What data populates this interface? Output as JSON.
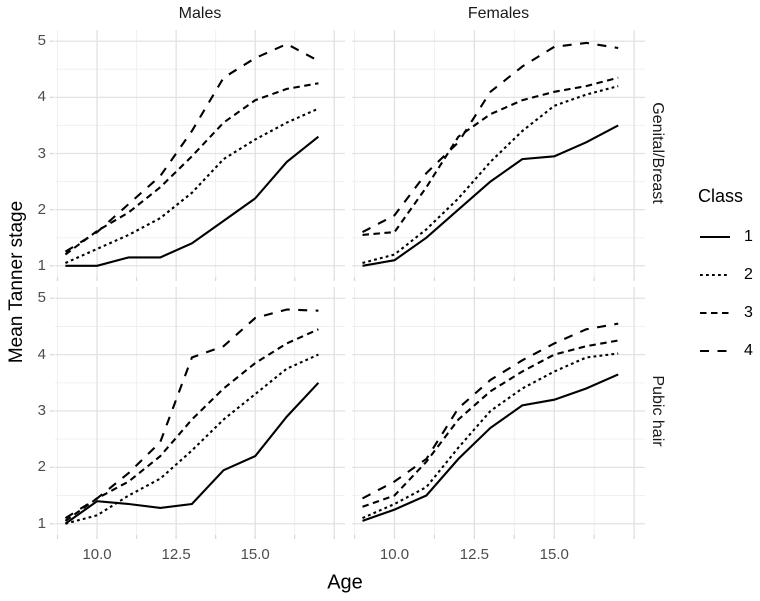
{
  "figure": {
    "y_axis_title": "Mean Tanner stage",
    "x_axis_title": "Age",
    "col_facets": [
      "Males",
      "Females"
    ],
    "row_facets": [
      "Genital/Breast",
      "Pubic hair"
    ],
    "x_tick_labels": [
      "10.0",
      "12.5",
      "15.0"
    ],
    "y_tick_labels": [
      "1",
      "2",
      "3",
      "4",
      "5"
    ],
    "colors": {
      "line": "#000000",
      "grid_major": "#e2e2e2",
      "grid_minor": "#f0f0f0",
      "tick_mark": "#d9d9d9",
      "tick_label": "#4d4d4d",
      "strip_text": "#1a1a1a",
      "background": "#ffffff"
    }
  },
  "legend": {
    "title": "Class",
    "items": [
      {
        "label": "1",
        "dash": "none"
      },
      {
        "label": "2",
        "dash": "2.8 3.2"
      },
      {
        "label": "3",
        "dash": "6.5 4.5"
      },
      {
        "label": "4",
        "dash": "9 8.5"
      }
    ]
  },
  "chart_data": {
    "type": "line",
    "title": "",
    "xlabel": "Age",
    "ylabel": "Mean Tanner stage",
    "legend_title": "Class",
    "legend_position": "right",
    "grid": true,
    "x": [
      9,
      10,
      11,
      12,
      13,
      14,
      15,
      16,
      17
    ],
    "x_tick_values": [
      10,
      12.5,
      15
    ],
    "y_tick_values": [
      1,
      2,
      3,
      4,
      5
    ],
    "x_minor_gridlines": [
      8.75,
      11.25,
      13.75,
      16.25
    ],
    "x_major_gridlines": [
      10,
      12.5,
      15,
      17.5
    ],
    "y_minor_gridlines": [
      1.5,
      2.5,
      3.5,
      4.5
    ],
    "y_major_gridlines": [
      1,
      2,
      3,
      4,
      5
    ],
    "xlim": [
      8.67,
      17.84
    ],
    "ylim": [
      0.8,
      5.2
    ],
    "panels": [
      {
        "col": "Males",
        "row": "Genital/Breast",
        "series": [
          {
            "name": "1",
            "values": [
              1.0,
              1.0,
              1.15,
              1.15,
              1.4,
              1.8,
              2.2,
              2.85,
              3.3
            ]
          },
          {
            "name": "2",
            "values": [
              1.05,
              1.3,
              1.55,
              1.85,
              2.3,
              2.9,
              3.25,
              3.55,
              3.8
            ]
          },
          {
            "name": "3",
            "values": [
              1.2,
              1.62,
              1.95,
              2.4,
              2.95,
              3.55,
              3.95,
              4.15,
              4.25
            ]
          },
          {
            "name": "4",
            "values": [
              1.25,
              1.6,
              2.1,
              2.6,
              3.4,
              4.35,
              4.7,
              4.95,
              4.65
            ]
          }
        ]
      },
      {
        "col": "Females",
        "row": "Genital/Breast",
        "series": [
          {
            "name": "1",
            "values": [
              1.0,
              1.1,
              1.5,
              2.0,
              2.5,
              2.9,
              2.95,
              3.2,
              3.5
            ]
          },
          {
            "name": "2",
            "values": [
              1.05,
              1.2,
              1.65,
              2.2,
              2.85,
              3.4,
              3.85,
              4.05,
              4.2
            ]
          },
          {
            "name": "3",
            "values": [
              1.55,
              1.6,
              2.4,
              3.3,
              3.7,
              3.95,
              4.1,
              4.2,
              4.35
            ]
          },
          {
            "name": "4",
            "values": [
              1.6,
              1.9,
              2.65,
              3.2,
              4.1,
              4.55,
              4.9,
              4.97,
              4.88
            ]
          }
        ]
      },
      {
        "col": "Males",
        "row": "Pubic hair",
        "series": [
          {
            "name": "1",
            "values": [
              1.0,
              1.4,
              1.35,
              1.28,
              1.35,
              1.95,
              2.2,
              2.9,
              3.5
            ]
          },
          {
            "name": "2",
            "values": [
              1.0,
              1.15,
              1.5,
              1.8,
              2.3,
              2.85,
              3.3,
              3.75,
              4.0
            ]
          },
          {
            "name": "3",
            "values": [
              1.05,
              1.45,
              1.75,
              2.2,
              2.85,
              3.4,
              3.85,
              4.2,
              4.45
            ]
          },
          {
            "name": "4",
            "values": [
              1.1,
              1.45,
              1.9,
              2.45,
              3.95,
              4.15,
              4.65,
              4.8,
              4.78
            ]
          }
        ]
      },
      {
        "col": "Females",
        "row": "Pubic hair",
        "series": [
          {
            "name": "1",
            "values": [
              1.05,
              1.25,
              1.5,
              2.15,
              2.7,
              3.1,
              3.2,
              3.4,
              3.65
            ]
          },
          {
            "name": "2",
            "values": [
              1.1,
              1.35,
              1.65,
              2.35,
              3.0,
              3.4,
              3.7,
              3.95,
              4.02
            ]
          },
          {
            "name": "3",
            "values": [
              1.3,
              1.5,
              2.1,
              2.85,
              3.35,
              3.7,
              4.0,
              4.15,
              4.25
            ]
          },
          {
            "name": "4",
            "values": [
              1.45,
              1.75,
              2.15,
              3.05,
              3.55,
              3.9,
              4.2,
              4.45,
              4.55
            ]
          }
        ]
      }
    ]
  }
}
